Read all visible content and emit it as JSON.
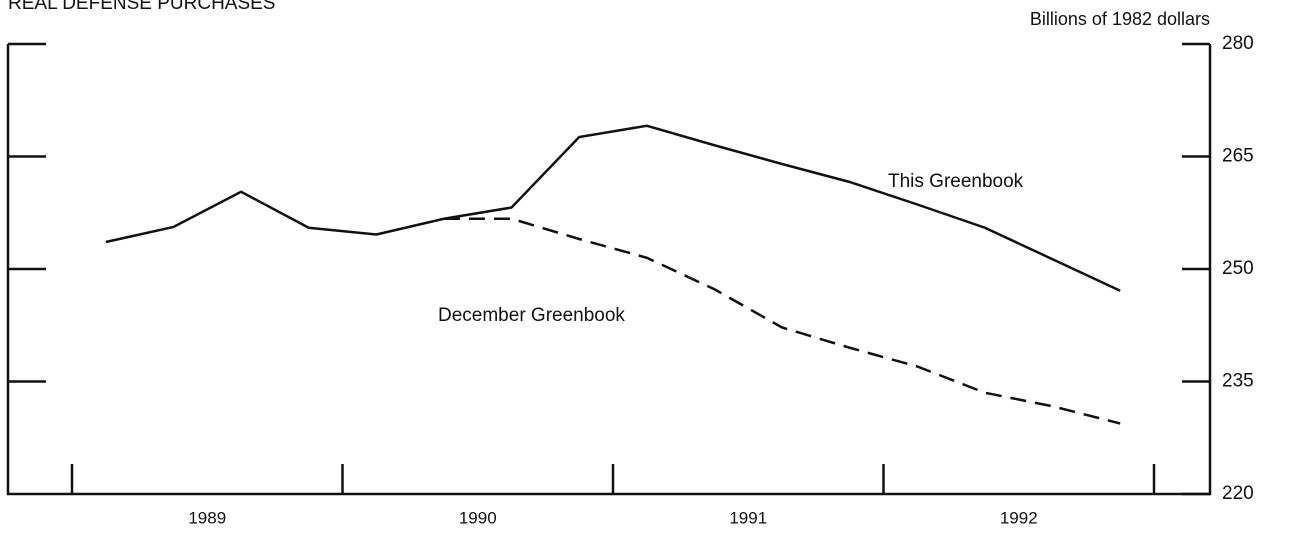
{
  "chart_data": {
    "type": "line",
    "title": "REAL DEFENSE PURCHASES",
    "y_axis_label": "Billions of 1982 dollars",
    "years": [
      "1989",
      "1990",
      "1991",
      "1992"
    ],
    "categories": [
      null,
      null,
      null,
      null,
      null,
      null,
      null,
      null,
      null,
      null,
      null,
      null,
      null,
      null,
      null,
      null
    ],
    "series": [
      {
        "name": "This Greenbook",
        "color": "#111111",
        "dash": false,
        "values": [
          253.6,
          255.6,
          260.3,
          255.5,
          254.6,
          256.7,
          258.2,
          267.6,
          269.1,
          266.5,
          264.0,
          261.6,
          258.6,
          255.5,
          251.3,
          247.1
        ]
      },
      {
        "name": "December Greenbook",
        "color": "#111111",
        "dash": true,
        "values": [
          null,
          null,
          null,
          null,
          null,
          256.7,
          256.7,
          254.0,
          251.5,
          247.3,
          242.2,
          239.5,
          237.0,
          233.5,
          231.7,
          229.4
        ]
      }
    ],
    "ylim": [
      220,
      280
    ],
    "yticks": [
      220,
      235,
      250,
      265,
      280
    ]
  }
}
